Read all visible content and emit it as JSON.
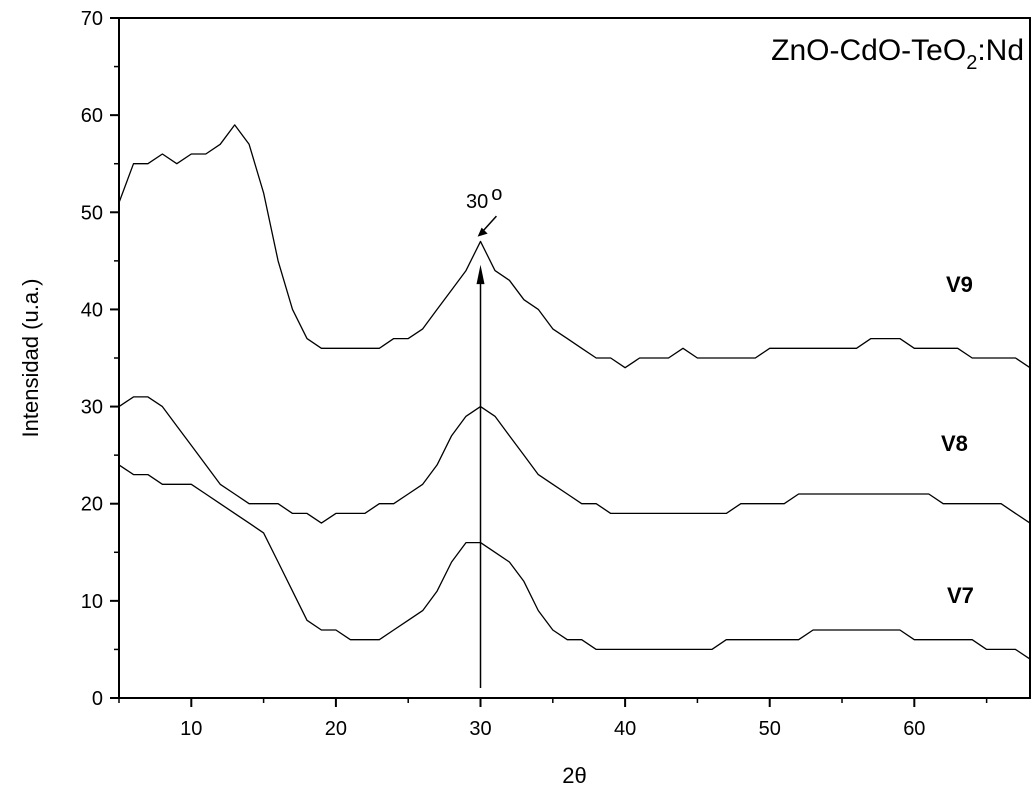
{
  "chart_data": {
    "type": "line",
    "title": "ZnO-CdO-TeO",
    "title_subscript": "2",
    "title_suffix": ":Nd",
    "xlabel": "2θ",
    "ylabel": "Intensidad (u.a.)",
    "xlim": [
      5,
      68
    ],
    "ylim": [
      0,
      70
    ],
    "xticks": [
      10,
      20,
      30,
      40,
      50,
      60
    ],
    "yticks": [
      0,
      10,
      20,
      30,
      40,
      50,
      60,
      70
    ],
    "grid": false,
    "legend": "none",
    "colors": {
      "line": "#000000",
      "axis": "#000000",
      "background": "#ffffff"
    },
    "annotation": {
      "text": "30",
      "degree": "o",
      "x": 30
    },
    "x": [
      5,
      6,
      7,
      8,
      9,
      10,
      11,
      12,
      13,
      14,
      15,
      16,
      17,
      18,
      19,
      20,
      21,
      22,
      23,
      24,
      25,
      26,
      27,
      28,
      29,
      30,
      31,
      32,
      33,
      34,
      35,
      36,
      37,
      38,
      39,
      40,
      41,
      42,
      43,
      44,
      45,
      46,
      47,
      48,
      49,
      50,
      51,
      52,
      53,
      54,
      55,
      56,
      57,
      58,
      59,
      60,
      61,
      62,
      63,
      64,
      65,
      66,
      67,
      68
    ],
    "series": [
      {
        "name": "V9",
        "values": [
          51,
          55,
          55,
          56,
          55,
          56,
          56,
          57,
          59,
          57,
          52,
          45,
          40,
          37,
          36,
          36,
          36,
          36,
          36,
          37,
          37,
          38,
          40,
          42,
          44,
          47,
          44,
          43,
          41,
          40,
          38,
          37,
          36,
          35,
          35,
          34,
          35,
          35,
          35,
          36,
          35,
          35,
          35,
          35,
          35,
          36,
          36,
          36,
          36,
          36,
          36,
          36,
          37,
          37,
          37,
          36,
          36,
          36,
          36,
          35,
          35,
          35,
          35,
          34
        ]
      },
      {
        "name": "V8",
        "values": [
          30,
          31,
          31,
          30,
          28,
          26,
          24,
          22,
          21,
          20,
          20,
          20,
          19,
          19,
          18,
          19,
          19,
          19,
          20,
          20,
          21,
          22,
          24,
          27,
          29,
          30,
          29,
          27,
          25,
          23,
          22,
          21,
          20,
          20,
          19,
          19,
          19,
          19,
          19,
          19,
          19,
          19,
          19,
          20,
          20,
          20,
          20,
          21,
          21,
          21,
          21,
          21,
          21,
          21,
          21,
          21,
          21,
          20,
          20,
          20,
          20,
          20,
          19,
          18
        ]
      },
      {
        "name": "V7",
        "values": [
          24,
          23,
          23,
          22,
          22,
          22,
          21,
          20,
          19,
          18,
          17,
          14,
          11,
          8,
          7,
          7,
          6,
          6,
          6,
          7,
          8,
          9,
          11,
          14,
          16,
          16,
          15,
          14,
          12,
          9,
          7,
          6,
          6,
          5,
          5,
          5,
          5,
          5,
          5,
          5,
          5,
          5,
          6,
          6,
          6,
          6,
          6,
          6,
          7,
          7,
          7,
          7,
          7,
          7,
          7,
          6,
          6,
          6,
          6,
          6,
          5,
          5,
          5,
          4
        ]
      }
    ]
  }
}
